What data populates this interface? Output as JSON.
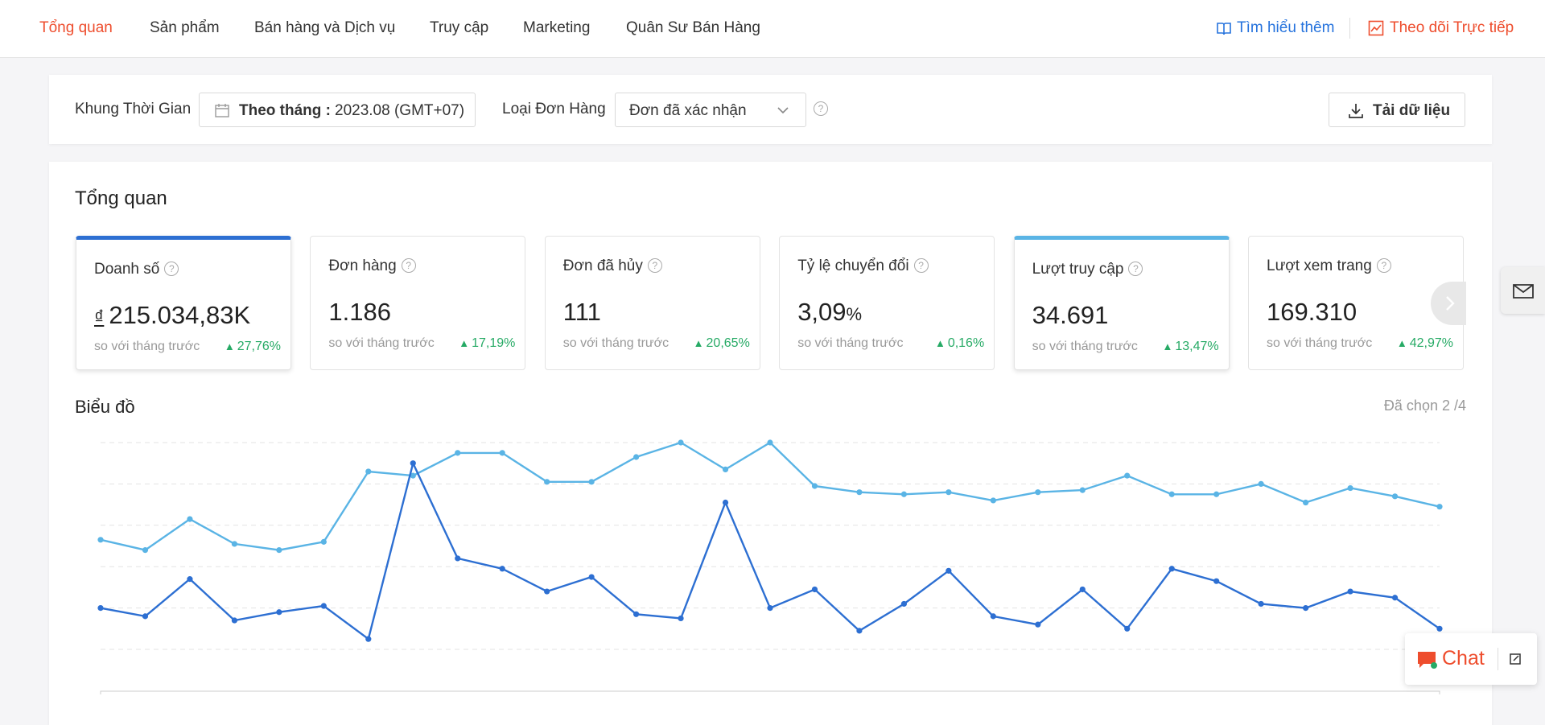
{
  "nav": {
    "items": [
      "Tổng quan",
      "Sản phẩm",
      "Bán hàng và Dịch vụ",
      "Truy cập",
      "Marketing",
      "Quân Sư Bán Hàng"
    ],
    "learn_more": "Tìm hiểu thêm",
    "live": "Theo dõi Trực tiếp"
  },
  "filters": {
    "period_label": "Khung Thời Gian",
    "period_mode": "Theo tháng :",
    "period_value": "2023.08 (GMT+07)",
    "order_type_label": "Loại Đơn Hàng",
    "order_type_value": "Đơn đã xác nhận",
    "download": "Tải dữ liệu"
  },
  "overview": {
    "title": "Tổng quan",
    "cards": [
      {
        "label": "Doanh số",
        "currency": "₫",
        "value": "215.034,83K",
        "compare": "so với tháng trước",
        "change": "27,76%"
      },
      {
        "label": "Đơn hàng",
        "value": "1.186",
        "compare": "so với tháng trước",
        "change": "17,19%"
      },
      {
        "label": "Đơn đã hủy",
        "value": "111",
        "compare": "so với tháng trước",
        "change": "20,65%"
      },
      {
        "label": "Tỷ lệ chuyển đổi",
        "value": "3,09",
        "unit": "%",
        "compare": "so với tháng trước",
        "change": "0,16%"
      },
      {
        "label": "Lượt truy cập",
        "value": "34.691",
        "compare": "so với tháng trước",
        "change": "13,47%"
      },
      {
        "label": "Lượt xem trang",
        "value": "169.310",
        "compare": "so với tháng trước",
        "change": "42,97%"
      }
    ]
  },
  "chart_data": {
    "type": "line",
    "title": "Biểu đồ",
    "subtitle": "Đã chọn 2 /4",
    "ylim": [
      0,
      100
    ],
    "grid": true,
    "series": [
      {
        "color": "#5ab4e5",
        "values": [
          53,
          48,
          63,
          51,
          48,
          52,
          86,
          84,
          95,
          95,
          81,
          81,
          93,
          100,
          87,
          100,
          79,
          76,
          75,
          76,
          72,
          76,
          77,
          84,
          75,
          75,
          80,
          71,
          78,
          74,
          69
        ]
      },
      {
        "color": "#2d6fd2",
        "values": [
          20,
          16,
          34,
          14,
          18,
          21,
          5,
          90,
          44,
          39,
          28,
          35,
          17,
          15,
          71,
          20,
          29,
          9,
          22,
          38,
          16,
          12,
          29,
          10,
          39,
          33,
          22,
          20,
          28,
          25,
          10
        ]
      }
    ]
  },
  "chat": {
    "label": "Chat"
  }
}
